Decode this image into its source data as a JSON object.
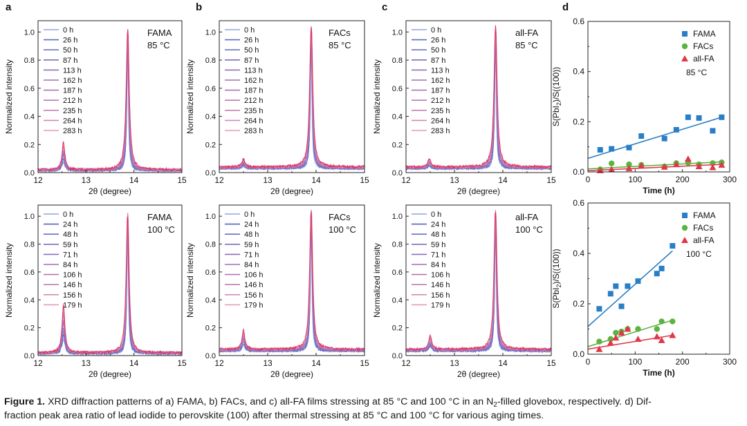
{
  "caption": {
    "label": "Figure 1.",
    "line1": "XRD diffraction patterns of a) FAMA, b) FACs, and c) all-FA films stressing at 85 °C and 100 °C in an N",
    "sub": "2",
    "line1_end": "-filled glovebox, respectively. d) Dif-",
    "line2": "fraction peak area ratio of lead iodide to perovskite (100) after thermal stressing at 85 °C and 100 °C for various aging times."
  },
  "colors": {
    "legend_85": [
      "#8fa4d8",
      "#5a6fc2",
      "#6b76c0",
      "#7a6cbc",
      "#8d6cbb",
      "#a26cba",
      "#b06fb6",
      "#bb77b4",
      "#c67fb2",
      "#d488b4",
      "#e79bb6"
    ],
    "legend_100": [
      "#8fa4d8",
      "#5060c0",
      "#6a6cbf",
      "#7d6cbd",
      "#906cbb",
      "#a46cb8",
      "#b573b4",
      "#c27cb2",
      "#d08ab4",
      "#e69cb7"
    ],
    "trace_main": "#e0234e",
    "fama": "#2a7ec6",
    "facs": "#5cb341",
    "allfa": "#e0374a"
  },
  "chart_data": [
    {
      "id": "a-top",
      "panel_label": "a",
      "type": "line",
      "sample": "FAMA",
      "temperature": "85 °C",
      "xlabel": "2θ (degree)",
      "ylabel": "Normalized intensity",
      "xlim": [
        12,
        15
      ],
      "ylim": [
        0,
        1.08
      ],
      "xticks": [
        "12",
        "13",
        "14",
        "15"
      ],
      "yticks": [
        "0.0",
        "0.2",
        "0.4",
        "0.6",
        "0.8",
        "1.0"
      ],
      "legend": [
        "0 h",
        "26 h",
        "50 h",
        "87 h",
        "113 h",
        "162 h",
        "187 h",
        "212 h",
        "235 h",
        "264 h",
        "283 h"
      ],
      "peaks": [
        {
          "center": 12.53,
          "height": 0.2
        },
        {
          "center": 13.87,
          "height": 1.0
        }
      ],
      "baseline": 0.02
    },
    {
      "id": "b-top",
      "panel_label": "b",
      "type": "line",
      "sample": "FACs",
      "temperature": "85 °C",
      "xlabel": "2θ (degree)",
      "ylabel": "Normalized intensity",
      "xlim": [
        12,
        15
      ],
      "ylim": [
        0,
        1.08
      ],
      "xticks": [
        "12",
        "13",
        "14",
        "15"
      ],
      "yticks": [
        "0.0",
        "0.2",
        "0.4",
        "0.6",
        "0.8",
        "1.0"
      ],
      "legend": [
        "0 h",
        "26 h",
        "50 h",
        "87 h",
        "113 h",
        "162 h",
        "187 h",
        "212 h",
        "235 h",
        "264 h",
        "283 h"
      ],
      "peaks": [
        {
          "center": 12.5,
          "height": 0.06
        },
        {
          "center": 13.9,
          "height": 1.0
        }
      ],
      "baseline": 0.04
    },
    {
      "id": "c-top",
      "panel_label": "c",
      "type": "line",
      "sample": "all-FA",
      "temperature": "85 °C",
      "xlabel": "2θ (degree)",
      "ylabel": "Normalized intensity",
      "xlim": [
        12,
        15
      ],
      "ylim": [
        0,
        1.08
      ],
      "xticks": [
        "12",
        "13",
        "14",
        "15"
      ],
      "yticks": [
        "0.0",
        "0.2",
        "0.4",
        "0.6",
        "0.8",
        "1.0"
      ],
      "legend": [
        "0 h",
        "26 h",
        "50 h",
        "87 h",
        "113 h",
        "162 h",
        "187 h",
        "212 h",
        "235 h",
        "264 h",
        "283 h"
      ],
      "peaks": [
        {
          "center": 12.48,
          "height": 0.06
        },
        {
          "center": 13.85,
          "height": 1.0
        }
      ],
      "baseline": 0.04
    },
    {
      "id": "a-bottom",
      "panel_label": "",
      "type": "line",
      "sample": "FAMA",
      "temperature": "100 °C",
      "xlabel": "2θ (degree)",
      "ylabel": "Normalized intensity",
      "xlim": [
        12,
        15
      ],
      "ylim": [
        0,
        1.08
      ],
      "xticks": [
        "12",
        "13",
        "14",
        "15"
      ],
      "yticks": [
        "0.0",
        "0.2",
        "0.4",
        "0.6",
        "0.8",
        "1.0"
      ],
      "legend": [
        "0 h",
        "24 h",
        "48 h",
        "59 h",
        "71 h",
        "84 h",
        "106 h",
        "146 h",
        "156 h",
        "179 h"
      ],
      "peaks": [
        {
          "center": 12.53,
          "height": 0.35
        },
        {
          "center": 13.87,
          "height": 1.0
        }
      ],
      "baseline": 0.02
    },
    {
      "id": "b-bottom",
      "panel_label": "",
      "type": "line",
      "sample": "FACs",
      "temperature": "100 °C",
      "xlabel": "2θ (degree)",
      "ylabel": "Normalized intensity",
      "xlim": [
        12,
        15
      ],
      "ylim": [
        0,
        1.08
      ],
      "xticks": [
        "12",
        "13",
        "14",
        "15"
      ],
      "yticks": [
        "0.0",
        "0.2",
        "0.4",
        "0.6",
        "0.8",
        "1.0"
      ],
      "legend": [
        "0 h",
        "24 h",
        "48 h",
        "59 h",
        "71 h",
        "84 h",
        "106 h",
        "146 h",
        "156 h",
        "179 h"
      ],
      "peaks": [
        {
          "center": 12.5,
          "height": 0.14
        },
        {
          "center": 13.9,
          "height": 1.0
        }
      ],
      "baseline": 0.045
    },
    {
      "id": "c-bottom",
      "panel_label": "",
      "type": "line",
      "sample": "all-FA",
      "temperature": "100 °C",
      "xlabel": "2θ (degree)",
      "ylabel": "Normalized intensity",
      "xlim": [
        12,
        15
      ],
      "ylim": [
        0,
        1.08
      ],
      "xticks": [
        "12",
        "13",
        "14",
        "15"
      ],
      "yticks": [
        "0.0",
        "0.2",
        "0.4",
        "0.6",
        "0.8",
        "1.0"
      ],
      "legend": [
        "0 h",
        "24 h",
        "48 h",
        "59 h",
        "71 h",
        "84 h",
        "106 h",
        "146 h",
        "156 h",
        "179 h"
      ],
      "peaks": [
        {
          "center": 12.5,
          "height": 0.1
        },
        {
          "center": 13.85,
          "height": 1.0
        }
      ],
      "baseline": 0.045
    },
    {
      "id": "d-top",
      "panel_label": "d",
      "type": "scatter",
      "temperature": "85 °C",
      "xlabel": "Time (h)",
      "ylabel_main": "S(PbI",
      "ylabel_sub": "2",
      "ylabel_end": ")/S((100))",
      "xlim": [
        0,
        300
      ],
      "ylim": [
        0,
        0.6
      ],
      "xticks": [
        "0",
        "100",
        "200",
        "300"
      ],
      "yticks": [
        "0.0",
        "0.2",
        "0.4",
        "0.6"
      ],
      "series": [
        {
          "name": "FAMA",
          "marker": "square",
          "x": [
            26,
            50,
            87,
            113,
            162,
            187,
            212,
            235,
            264,
            283
          ],
          "y": [
            0.088,
            0.092,
            0.097,
            0.143,
            0.133,
            0.168,
            0.218,
            0.215,
            0.164,
            0.218
          ],
          "fit": [
            [
              0,
              0.054
            ],
            [
              283,
              0.218
            ]
          ]
        },
        {
          "name": "FACs",
          "marker": "circle",
          "x": [
            26,
            50,
            87,
            113,
            162,
            187,
            212,
            235,
            264,
            283
          ],
          "y": [
            0.01,
            0.034,
            0.03,
            0.028,
            0.022,
            0.035,
            0.036,
            0.03,
            0.035,
            0.038
          ],
          "fit": [
            [
              0,
              0.012
            ],
            [
              283,
              0.04
            ]
          ]
        },
        {
          "name": "all-FA",
          "marker": "triangle",
          "x": [
            26,
            50,
            87,
            113,
            162,
            187,
            212,
            235,
            264,
            283
          ],
          "y": [
            0.006,
            0.01,
            0.014,
            0.025,
            0.02,
            0.03,
            0.052,
            0.022,
            0.018,
            0.028
          ],
          "fit": [
            [
              0,
              0.005
            ],
            [
              283,
              0.03
            ]
          ]
        }
      ]
    },
    {
      "id": "d-bottom",
      "panel_label": "",
      "type": "scatter",
      "temperature": "100 °C",
      "xlabel": "Time (h)",
      "ylabel_main": "S(PbI",
      "ylabel_sub": "2",
      "ylabel_end": ")/S((100))",
      "xlim": [
        0,
        300
      ],
      "ylim": [
        0,
        0.6
      ],
      "xticks": [
        "0",
        "100",
        "200",
        "300"
      ],
      "yticks": [
        "0.0",
        "0.2",
        "0.4",
        "0.6"
      ],
      "series": [
        {
          "name": "FAMA",
          "marker": "square",
          "x": [
            24,
            48,
            59,
            71,
            84,
            106,
            146,
            156,
            179
          ],
          "y": [
            0.18,
            0.24,
            0.27,
            0.19,
            0.27,
            0.29,
            0.32,
            0.34,
            0.43
          ],
          "fit": [
            [
              0,
              0.11
            ],
            [
              179,
              0.41
            ]
          ]
        },
        {
          "name": "FACs",
          "marker": "circle",
          "x": [
            24,
            48,
            59,
            71,
            84,
            106,
            146,
            156,
            179
          ],
          "y": [
            0.05,
            0.06,
            0.085,
            0.09,
            0.1,
            0.1,
            0.1,
            0.13,
            0.13
          ],
          "fit": [
            [
              0,
              0.03
            ],
            [
              179,
              0.135
            ]
          ]
        },
        {
          "name": "all-FA",
          "marker": "triangle",
          "x": [
            24,
            48,
            59,
            71,
            84,
            106,
            146,
            156,
            179
          ],
          "y": [
            0.02,
            0.045,
            0.065,
            0.085,
            0.1,
            0.06,
            0.07,
            0.055,
            0.075
          ],
          "fit": [
            [
              0,
              0.02
            ],
            [
              179,
              0.075
            ]
          ]
        }
      ]
    }
  ]
}
